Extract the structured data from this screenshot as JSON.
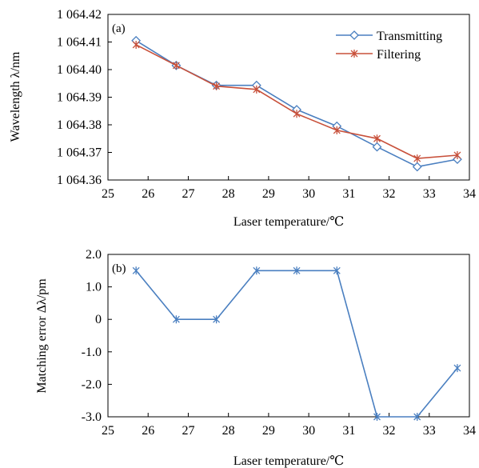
{
  "chart_data": [
    {
      "type": "line",
      "panel_label": "(a)",
      "xlabel": "Laser temperature/℃",
      "ylabel": "Wavelength λ/nm",
      "xlim": [
        25,
        34
      ],
      "ylim": [
        1064.36,
        1064.42
      ],
      "x_ticks": [
        "25",
        "26",
        "27",
        "28",
        "29",
        "30",
        "31",
        "32",
        "33",
        "34"
      ],
      "y_ticks": [
        "1 064.36",
        "1 064.37",
        "1 064.38",
        "1 064.39",
        "1 064.40",
        "1 064.41",
        "1 064.42"
      ],
      "grid": false,
      "legend_position": "top-right",
      "series": [
        {
          "name": "Transmitting",
          "marker": "diamond",
          "color": "#4a7fc0",
          "x": [
            25.7,
            26.7,
            27.7,
            28.7,
            29.7,
            30.7,
            31.7,
            32.7,
            33.7
          ],
          "y": [
            1064.4105,
            1064.4015,
            1064.3943,
            1064.3943,
            1064.3855,
            1064.3795,
            1064.372,
            1064.3648,
            1064.3675
          ]
        },
        {
          "name": "Filtering",
          "marker": "star",
          "color": "#c8503a",
          "x": [
            25.7,
            26.7,
            27.7,
            28.7,
            29.7,
            30.7,
            31.7,
            32.7,
            33.7
          ],
          "y": [
            1064.409,
            1064.4015,
            1064.394,
            1064.3928,
            1064.384,
            1064.378,
            1064.375,
            1064.3678,
            1064.369
          ]
        }
      ]
    },
    {
      "type": "line",
      "panel_label": "(b)",
      "xlabel": "Laser temperature/℃",
      "ylabel": "Matching error Δλ/pm",
      "xlim": [
        25,
        34
      ],
      "ylim": [
        -3.0,
        2.0
      ],
      "x_ticks": [
        "25",
        "26",
        "27",
        "28",
        "29",
        "30",
        "31",
        "32",
        "33",
        "34"
      ],
      "y_ticks": [
        "-3.0",
        "-2.0",
        "-1.0",
        "0",
        "1.0",
        "2.0"
      ],
      "grid": false,
      "series": [
        {
          "marker": "star",
          "color": "#4a7fc0",
          "x": [
            25.7,
            26.7,
            27.7,
            28.7,
            29.7,
            30.7,
            31.7,
            32.7,
            33.7
          ],
          "y": [
            1.5,
            0,
            0,
            1.5,
            1.5,
            1.5,
            -3.0,
            -3.0,
            -1.5
          ]
        }
      ]
    }
  ]
}
